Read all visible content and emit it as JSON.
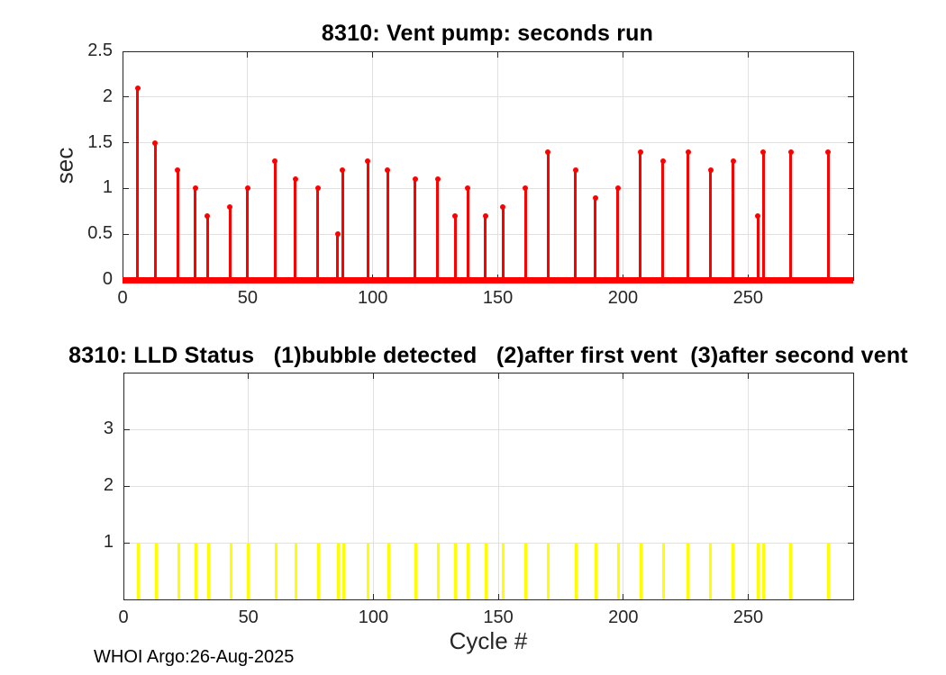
{
  "figure": {
    "footer_text": "WHOI Argo:26-Aug-2025",
    "background_color": "#ffffff",
    "axis_color": "#262626",
    "grid_color": "#e0e0e0"
  },
  "chart_data": [
    {
      "type": "stem",
      "title": "8310: Vent pump: seconds run",
      "xlabel": "",
      "ylabel": "sec",
      "series_color": "#ff0000",
      "marker": "filled-circle",
      "grid": true,
      "xlim": [
        0,
        292
      ],
      "ylim": [
        0,
        2.5
      ],
      "xticks": [
        0,
        50,
        100,
        150,
        200,
        250
      ],
      "xtick_labels": [
        "0",
        "50",
        "100",
        "150",
        "200",
        "250"
      ],
      "yticks": [
        0,
        0.5,
        1,
        1.5,
        2,
        2.5
      ],
      "ytick_labels": [
        "0",
        "0.5",
        "1",
        "1.5",
        "2",
        "2.5"
      ],
      "zero_line": {
        "from": 0,
        "to": 292,
        "value": 0,
        "note": "all other cycles ran 0 sec (dense markers along baseline)"
      },
      "points": [
        [
          6,
          2.1
        ],
        [
          13,
          1.5
        ],
        [
          22,
          1.2
        ],
        [
          29,
          1.0
        ],
        [
          34,
          0.7
        ],
        [
          43,
          0.8
        ],
        [
          50,
          1.0
        ],
        [
          61,
          1.3
        ],
        [
          69,
          1.1
        ],
        [
          78,
          1.0
        ],
        [
          86,
          0.5
        ],
        [
          88,
          1.2
        ],
        [
          98,
          1.3
        ],
        [
          106,
          1.2
        ],
        [
          117,
          1.1
        ],
        [
          126,
          1.1
        ],
        [
          133,
          0.7
        ],
        [
          138,
          1.0
        ],
        [
          145,
          0.7
        ],
        [
          152,
          0.8
        ],
        [
          161,
          1.0
        ],
        [
          170,
          1.4
        ],
        [
          181,
          1.2
        ],
        [
          189,
          0.9
        ],
        [
          198,
          1.0
        ],
        [
          207,
          1.4
        ],
        [
          216,
          1.3
        ],
        [
          226,
          1.4
        ],
        [
          235,
          1.2
        ],
        [
          244,
          1.3
        ],
        [
          254,
          0.7
        ],
        [
          256,
          1.4
        ],
        [
          267,
          1.4
        ],
        [
          282,
          1.4
        ]
      ]
    },
    {
      "type": "bar",
      "title": "8310: LLD Status   (1)bubble detected   (2)after first vent  (3)after second vent",
      "xlabel": "Cycle #",
      "ylabel": "",
      "series_color": "#ffff00",
      "grid": true,
      "xlim": [
        0,
        292
      ],
      "ylim": [
        0,
        4
      ],
      "xticks": [
        0,
        50,
        100,
        150,
        200,
        250
      ],
      "xtick_labels": [
        "0",
        "50",
        "100",
        "150",
        "200",
        "250"
      ],
      "yticks": [
        1,
        2,
        3
      ],
      "ytick_labels": [
        "1",
        "2",
        "3"
      ],
      "bars": [
        [
          6,
          1
        ],
        [
          13,
          1
        ],
        [
          22,
          1
        ],
        [
          29,
          1
        ],
        [
          34,
          1
        ],
        [
          43,
          1
        ],
        [
          50,
          1
        ],
        [
          61,
          1
        ],
        [
          69,
          1
        ],
        [
          78,
          1
        ],
        [
          86,
          1
        ],
        [
          88,
          1
        ],
        [
          98,
          1
        ],
        [
          106,
          1
        ],
        [
          117,
          1
        ],
        [
          126,
          1
        ],
        [
          133,
          1
        ],
        [
          138,
          1
        ],
        [
          145,
          1
        ],
        [
          152,
          1
        ],
        [
          161,
          1
        ],
        [
          170,
          1
        ],
        [
          181,
          1
        ],
        [
          189,
          1
        ],
        [
          198,
          1
        ],
        [
          207,
          1
        ],
        [
          216,
          1
        ],
        [
          226,
          1
        ],
        [
          235,
          1
        ],
        [
          244,
          1
        ],
        [
          254,
          1
        ],
        [
          256,
          1
        ],
        [
          267,
          1
        ],
        [
          282,
          1
        ]
      ]
    }
  ]
}
